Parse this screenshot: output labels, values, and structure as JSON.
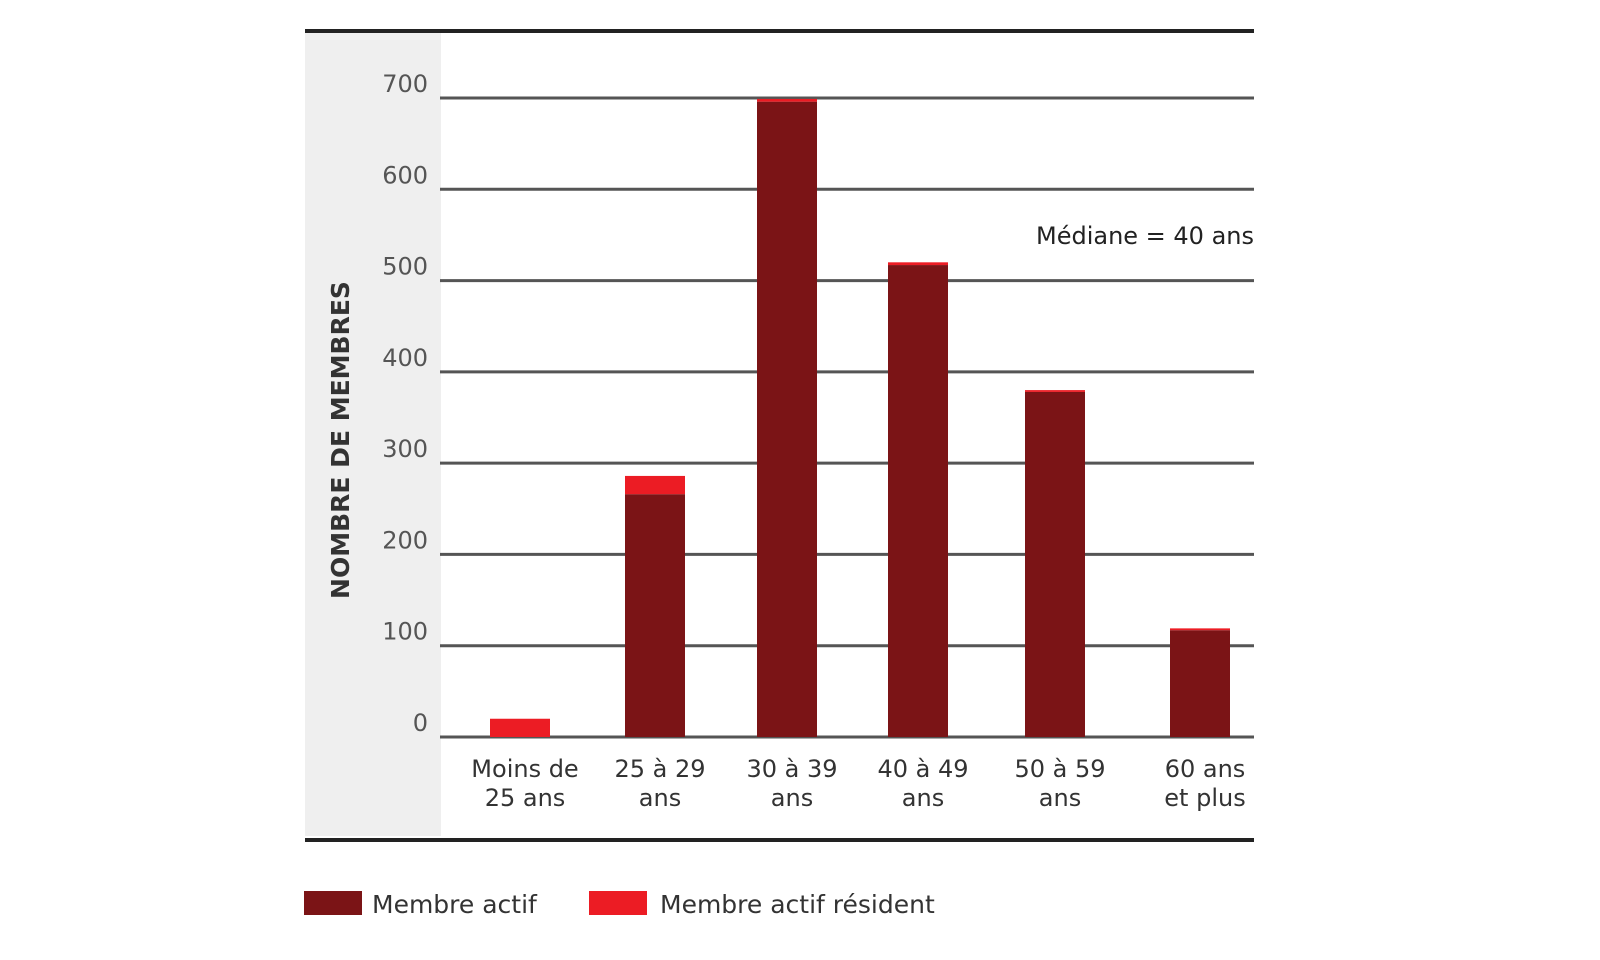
{
  "chart_data": {
    "type": "bar",
    "stacked": true,
    "title": "",
    "xlabel": "",
    "ylabel": "NOMBRE DE MEMBRES",
    "ylim": [
      0,
      700
    ],
    "yticks": [
      0,
      100,
      200,
      300,
      400,
      500,
      600,
      700
    ],
    "grid": true,
    "categories": [
      [
        "Moins de",
        "25 ans"
      ],
      [
        "25 à 29",
        "ans"
      ],
      [
        "30 à 39",
        "ans"
      ],
      [
        "40 à 49",
        "ans"
      ],
      [
        "50 à 59",
        "ans"
      ],
      [
        "60 ans",
        "et plus"
      ]
    ],
    "series": [
      {
        "name": "Membre actif",
        "color": "#7b1416",
        "values": [
          0,
          266,
          696,
          517,
          378,
          117
        ]
      },
      {
        "name": "Membre actif résident",
        "color": "#ec1c24",
        "values": [
          20,
          20,
          3,
          3,
          2,
          2
        ]
      }
    ],
    "annotation": "Médiane = 40 ans",
    "legend_position": "bottom-left"
  }
}
